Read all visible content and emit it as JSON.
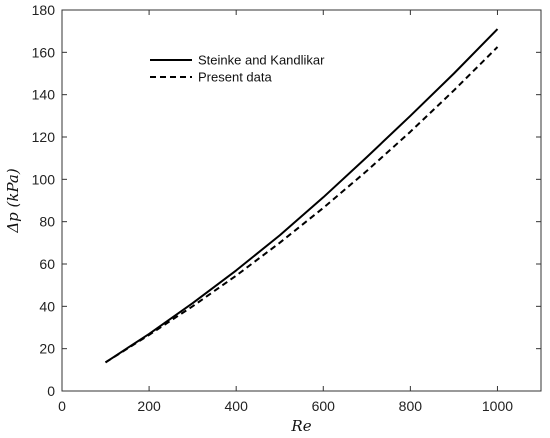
{
  "chart_data": {
    "type": "line",
    "title": "",
    "xlabel": "Re",
    "ylabel": "Δp (kPa)",
    "xlim": [
      0,
      1100
    ],
    "ylim": [
      0,
      180
    ],
    "xticks": [
      0,
      200,
      400,
      600,
      800,
      1000
    ],
    "yticks": [
      0,
      20,
      40,
      60,
      80,
      100,
      120,
      140,
      160,
      180
    ],
    "grid": false,
    "legend_position": "top-left",
    "series": [
      {
        "name": "Steinke and Kandlikar",
        "style": "solid",
        "color": "#000000",
        "x": [
          100,
          200,
          300,
          400,
          500,
          600,
          700,
          800,
          900,
          1000
        ],
        "y": [
          13.5,
          27,
          41.5,
          57,
          73.5,
          91.5,
          110.5,
          130,
          150,
          171
        ]
      },
      {
        "name": "Present data",
        "style": "dashed",
        "color": "#000000",
        "x": [
          100,
          200,
          300,
          400,
          500,
          600,
          700,
          800,
          900,
          1000
        ],
        "y": [
          13.5,
          26.5,
          40,
          54.5,
          70,
          86.5,
          104,
          122.5,
          142,
          162.5
        ]
      }
    ]
  }
}
